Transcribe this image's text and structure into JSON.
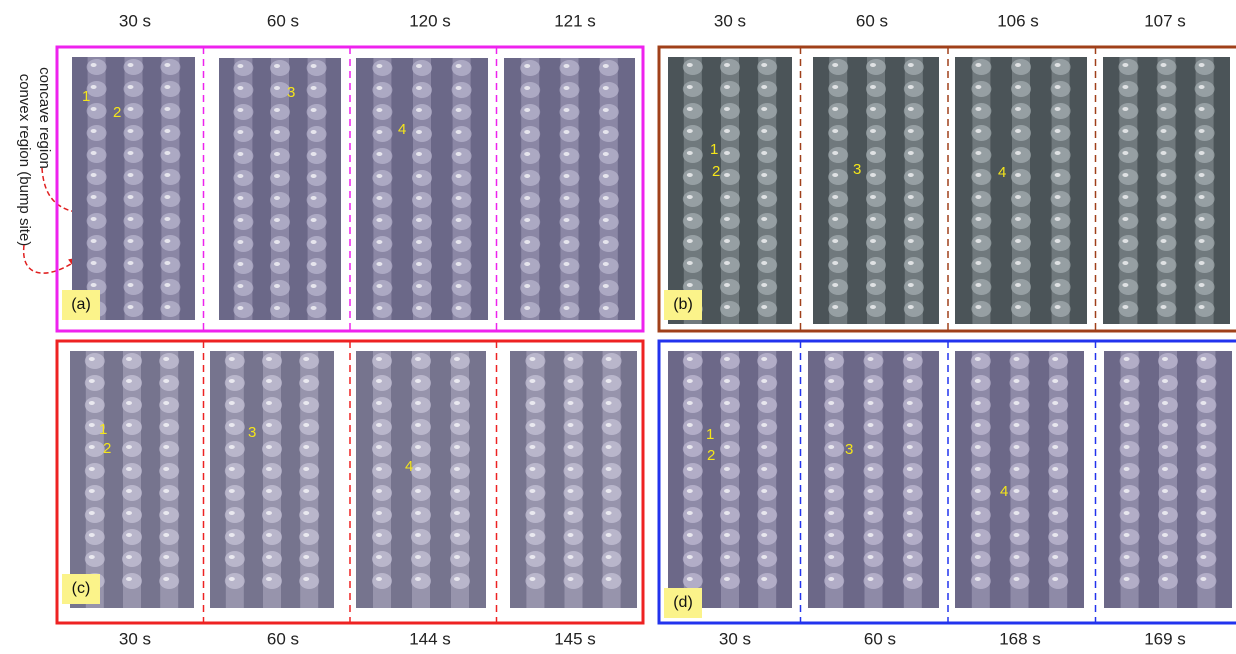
{
  "side_labels": [
    "concave region",
    "convex region (bump site)"
  ],
  "panels": [
    {
      "label": "(a)",
      "times": [
        "30 s",
        "60 s",
        "120 s",
        "121 s"
      ],
      "annotations": [
        "1",
        "2",
        "3",
        "4"
      ]
    },
    {
      "label": "(b)",
      "times": [
        "30 s",
        "60 s",
        "106 s",
        "107 s"
      ],
      "annotations": [
        "1",
        "2",
        "3",
        "4"
      ]
    },
    {
      "label": "(c)",
      "times": [
        "30 s",
        "60 s",
        "144 s",
        "145 s"
      ],
      "annotations": [
        "1",
        "2",
        "3",
        "4"
      ]
    },
    {
      "label": "(d)",
      "times": [
        "30 s",
        "60 s",
        "168 s",
        "169 s"
      ],
      "annotations": [
        "1",
        "2",
        "3",
        "4"
      ]
    }
  ]
}
